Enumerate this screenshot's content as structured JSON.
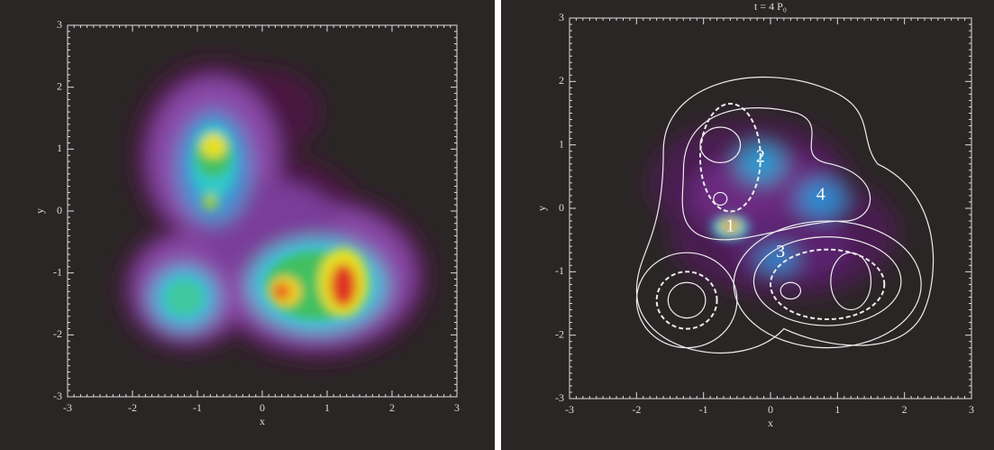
{
  "chart_data": [
    {
      "type": "heatmap",
      "xlabel": "x",
      "ylabel": "y",
      "xlim": [
        -3,
        3
      ],
      "ylim": [
        -3,
        3
      ],
      "xticks": [
        -3,
        -2,
        -1,
        0,
        1,
        2,
        3
      ],
      "yticks": [
        -3,
        -2,
        -1,
        0,
        1,
        2,
        3
      ]
    },
    {
      "type": "heatmap",
      "title": "t = 4 P₀",
      "xlabel": "x",
      "ylabel": "y",
      "xlim": [
        -3,
        3
      ],
      "ylim": [
        -3,
        3
      ],
      "xticks": [
        -3,
        -2,
        -1,
        0,
        1,
        2,
        3
      ],
      "yticks": [
        -3,
        -2,
        -1,
        0,
        1,
        2,
        3
      ],
      "annotations": [
        "1",
        "2",
        "3",
        "4"
      ]
    }
  ]
}
